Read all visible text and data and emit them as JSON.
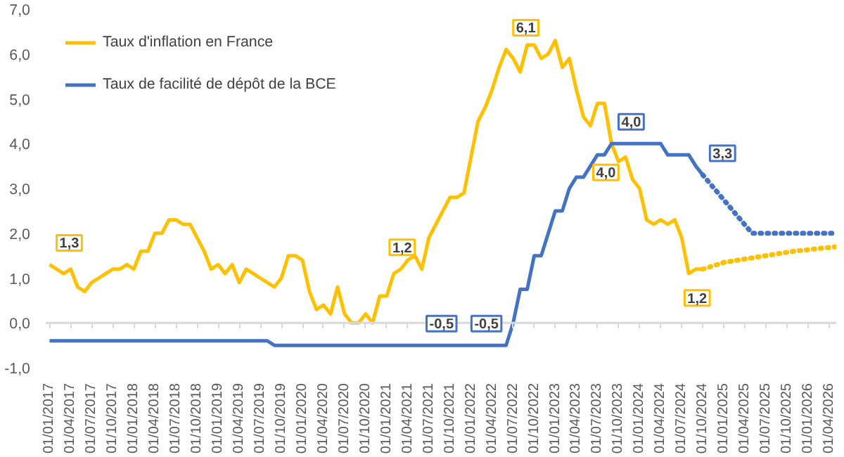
{
  "chart_data": {
    "type": "line",
    "x": [
      "2017-01",
      "2017-02",
      "2017-03",
      "2017-04",
      "2017-05",
      "2017-06",
      "2017-07",
      "2017-08",
      "2017-09",
      "2017-10",
      "2017-11",
      "2017-12",
      "2018-01",
      "2018-02",
      "2018-03",
      "2018-04",
      "2018-05",
      "2018-06",
      "2018-07",
      "2018-08",
      "2018-09",
      "2018-10",
      "2018-11",
      "2018-12",
      "2019-01",
      "2019-02",
      "2019-03",
      "2019-04",
      "2019-05",
      "2019-06",
      "2019-07",
      "2019-08",
      "2019-09",
      "2019-10",
      "2019-11",
      "2019-12",
      "2020-01",
      "2020-02",
      "2020-03",
      "2020-04",
      "2020-05",
      "2020-06",
      "2020-07",
      "2020-08",
      "2020-09",
      "2020-10",
      "2020-11",
      "2020-12",
      "2021-01",
      "2021-02",
      "2021-03",
      "2021-04",
      "2021-05",
      "2021-06",
      "2021-07",
      "2021-08",
      "2021-09",
      "2021-10",
      "2021-11",
      "2021-12",
      "2022-01",
      "2022-02",
      "2022-03",
      "2022-04",
      "2022-05",
      "2022-06",
      "2022-07",
      "2022-08",
      "2022-09",
      "2022-10",
      "2022-11",
      "2022-12",
      "2023-01",
      "2023-02",
      "2023-03",
      "2023-04",
      "2023-05",
      "2023-06",
      "2023-07",
      "2023-08",
      "2023-09",
      "2023-10",
      "2023-11",
      "2023-12",
      "2024-01",
      "2024-02",
      "2024-03",
      "2024-04",
      "2024-05",
      "2024-06",
      "2024-07",
      "2024-08",
      "2024-09",
      "2024-10"
    ],
    "series": [
      {
        "name": "Taux d'inflation en France",
        "color": "#ffc000",
        "values": [
          1.3,
          1.2,
          1.1,
          1.2,
          0.8,
          0.7,
          0.9,
          1.0,
          1.1,
          1.2,
          1.2,
          1.3,
          1.2,
          1.6,
          1.6,
          2.0,
          2.0,
          2.3,
          2.3,
          2.2,
          2.2,
          1.9,
          1.6,
          1.2,
          1.3,
          1.1,
          1.3,
          0.9,
          1.2,
          1.1,
          1.0,
          0.9,
          0.8,
          1.0,
          1.5,
          1.5,
          1.4,
          0.7,
          0.3,
          0.4,
          0.2,
          0.8,
          0.2,
          0.0,
          0.0,
          0.2,
          0.0,
          0.6,
          0.6,
          1.1,
          1.2,
          1.4,
          1.5,
          1.2,
          1.9,
          2.2,
          2.5,
          2.8,
          2.8,
          2.9,
          3.7,
          4.5,
          4.8,
          5.2,
          5.7,
          6.1,
          5.9,
          5.6,
          6.2,
          6.2,
          5.9,
          6.0,
          6.3,
          5.7,
          5.9,
          5.2,
          4.6,
          4.4,
          4.9,
          4.9,
          4.0,
          3.6,
          3.7,
          3.2,
          3.0,
          2.3,
          2.2,
          2.3,
          2.2,
          2.3,
          1.9,
          1.1,
          1.2,
          1.2
        ],
        "value_labels": [
          "1,3",
          null,
          null,
          null,
          null,
          null,
          null,
          null,
          null,
          null,
          null,
          null,
          null,
          null,
          null,
          null,
          null,
          null,
          null,
          null,
          null,
          null,
          null,
          null,
          null,
          null,
          null,
          null,
          null,
          null,
          null,
          null,
          null,
          null,
          null,
          null,
          null,
          null,
          null,
          null,
          null,
          null,
          null,
          null,
          null,
          null,
          null,
          null,
          null,
          null,
          null,
          null,
          null,
          "1,2",
          null,
          null,
          null,
          null,
          null,
          null,
          null,
          null,
          null,
          null,
          null,
          "6,1",
          null,
          null,
          null,
          null,
          null,
          null,
          null,
          null,
          null,
          null,
          null,
          null,
          null,
          null,
          "4,0",
          null,
          null,
          null,
          null,
          null,
          null,
          null,
          null,
          null,
          null,
          null,
          null,
          "1,2"
        ]
      },
      {
        "name": "Taux de facilité de dépôt de la BCE",
        "color": "#4472c4",
        "values": [
          -0.4,
          -0.4,
          -0.4,
          -0.4,
          -0.4,
          -0.4,
          -0.4,
          -0.4,
          -0.4,
          -0.4,
          -0.4,
          -0.4,
          -0.4,
          -0.4,
          -0.4,
          -0.4,
          -0.4,
          -0.4,
          -0.4,
          -0.4,
          -0.4,
          -0.4,
          -0.4,
          -0.4,
          -0.4,
          -0.4,
          -0.4,
          -0.4,
          -0.4,
          -0.4,
          -0.4,
          -0.4,
          -0.5,
          -0.5,
          -0.5,
          -0.5,
          -0.5,
          -0.5,
          -0.5,
          -0.5,
          -0.5,
          -0.5,
          -0.5,
          -0.5,
          -0.5,
          -0.5,
          -0.5,
          -0.5,
          -0.5,
          -0.5,
          -0.5,
          -0.5,
          -0.5,
          -0.5,
          -0.5,
          -0.5,
          -0.5,
          -0.5,
          -0.5,
          -0.5,
          -0.5,
          -0.5,
          -0.5,
          -0.5,
          -0.5,
          -0.5,
          0.0,
          0.75,
          0.75,
          1.5,
          1.5,
          2.0,
          2.5,
          2.5,
          3.0,
          3.25,
          3.25,
          3.5,
          3.75,
          3.75,
          4.0,
          4.0,
          4.0,
          4.0,
          4.0,
          4.0,
          4.0,
          4.0,
          3.75,
          3.75,
          3.75,
          3.75,
          3.5,
          3.3
        ],
        "value_labels": [
          null,
          null,
          null,
          null,
          null,
          null,
          null,
          null,
          null,
          null,
          null,
          null,
          null,
          null,
          null,
          null,
          null,
          null,
          null,
          null,
          null,
          null,
          null,
          null,
          null,
          null,
          null,
          null,
          null,
          null,
          null,
          null,
          null,
          null,
          null,
          null,
          null,
          null,
          null,
          null,
          null,
          null,
          null,
          null,
          null,
          null,
          null,
          null,
          null,
          null,
          null,
          null,
          null,
          "-0,5",
          null,
          null,
          null,
          null,
          null,
          null,
          null,
          null,
          null,
          null,
          null,
          "-0,5",
          null,
          null,
          null,
          null,
          null,
          null,
          null,
          null,
          null,
          null,
          null,
          null,
          null,
          null,
          "4,0",
          null,
          null,
          null,
          null,
          null,
          null,
          null,
          null,
          null,
          null,
          null,
          null,
          "3,3"
        ]
      },
      {
        "color": "#ffc000",
        "line_style": "dotted",
        "x": [
          "2024-10",
          "2025-01",
          "2025-05",
          "2025-11",
          "2026-05"
        ],
        "values": [
          1.2,
          1.35,
          1.45,
          1.6,
          1.7
        ]
      },
      {
        "color": "#4472c4",
        "line_style": "dotted",
        "x": [
          "2024-10",
          "2025-05",
          "2026-05"
        ],
        "values": [
          3.3,
          2.0,
          2.0
        ]
      }
    ],
    "xlim": [
      "2016-12-15",
      "2026-05"
    ],
    "ref_lines": [
      {
        "axis": "y",
        "value": 0,
        "color": "#d9d9d9"
      }
    ],
    "xticks": [
      {
        "value": "2017-01",
        "label": "01/01/2017"
      },
      {
        "value": "2017-04",
        "label": "01/04/2017"
      },
      {
        "value": "2017-07",
        "label": "01/07/2017"
      },
      {
        "value": "2017-10",
        "label": "01/10/2017"
      },
      {
        "value": "2018-01",
        "label": "01/01/2018"
      },
      {
        "value": "2018-04",
        "label": "01/04/2018"
      },
      {
        "value": "2018-07",
        "label": "01/07/2018"
      },
      {
        "value": "2018-10",
        "label": "01/10/2018"
      },
      {
        "value": "2019-01",
        "label": "01/01/2019"
      },
      {
        "value": "2019-04",
        "label": "01/04/2019"
      },
      {
        "value": "2019-07",
        "label": "01/07/2019"
      },
      {
        "value": "2019-10",
        "label": "01/10/2019"
      },
      {
        "value": "2020-01",
        "label": "01/01/2020"
      },
      {
        "value": "2020-04",
        "label": "01/04/2020"
      },
      {
        "value": "2020-07",
        "label": "01/07/2020"
      },
      {
        "value": "2020-10",
        "label": "01/10/2020"
      },
      {
        "value": "2021-01",
        "label": "01/01/2021"
      },
      {
        "value": "2021-04",
        "label": "01/04/2021"
      },
      {
        "value": "2021-07",
        "label": "01/07/2021"
      },
      {
        "value": "2021-10",
        "label": "01/10/2021"
      },
      {
        "value": "2022-01",
        "label": "01/01/2022"
      },
      {
        "value": "2022-04",
        "label": "01/04/2022"
      },
      {
        "value": "2022-07",
        "label": "01/07/2022"
      },
      {
        "value": "2022-10",
        "label": "01/10/2022"
      },
      {
        "value": "2023-01",
        "label": "01/01/2023"
      },
      {
        "value": "2023-04",
        "label": "01/04/2023"
      },
      {
        "value": "2023-07",
        "label": "01/07/2023"
      },
      {
        "value": "2023-10",
        "label": "01/10/2023"
      },
      {
        "value": "2024-01",
        "label": "01/01/2024"
      },
      {
        "value": "2024-04",
        "label": "01/04/2024"
      },
      {
        "value": "2024-07",
        "label": "01/07/2024"
      },
      {
        "value": "2024-10",
        "label": "01/10/2024"
      },
      {
        "value": "2025-01",
        "label": "01/01/2025"
      },
      {
        "value": "2025-04",
        "label": "01/04/2025"
      },
      {
        "value": "2025-07",
        "label": "01/07/2025"
      },
      {
        "value": "2025-10",
        "label": "01/10/2025"
      },
      {
        "value": "2026-01",
        "label": "01/01/2026"
      },
      {
        "value": "2026-04",
        "label": "01/04/2026"
      }
    ],
    "ylim": [
      -1,
      7
    ],
    "yticks": [
      {
        "value": -1,
        "label": "-1,0"
      },
      {
        "value": 0,
        "label": "0,0"
      },
      {
        "value": 1,
        "label": "1,0"
      },
      {
        "value": 2,
        "label": "2,0"
      },
      {
        "value": 3,
        "label": "3,0"
      },
      {
        "value": 4,
        "label": "4,0"
      },
      {
        "value": 5,
        "label": "5,0"
      },
      {
        "value": 6,
        "label": "6,0"
      },
      {
        "value": 7,
        "label": "7,0"
      }
    ],
    "legend": "top left",
    "line_style": "solid"
  }
}
